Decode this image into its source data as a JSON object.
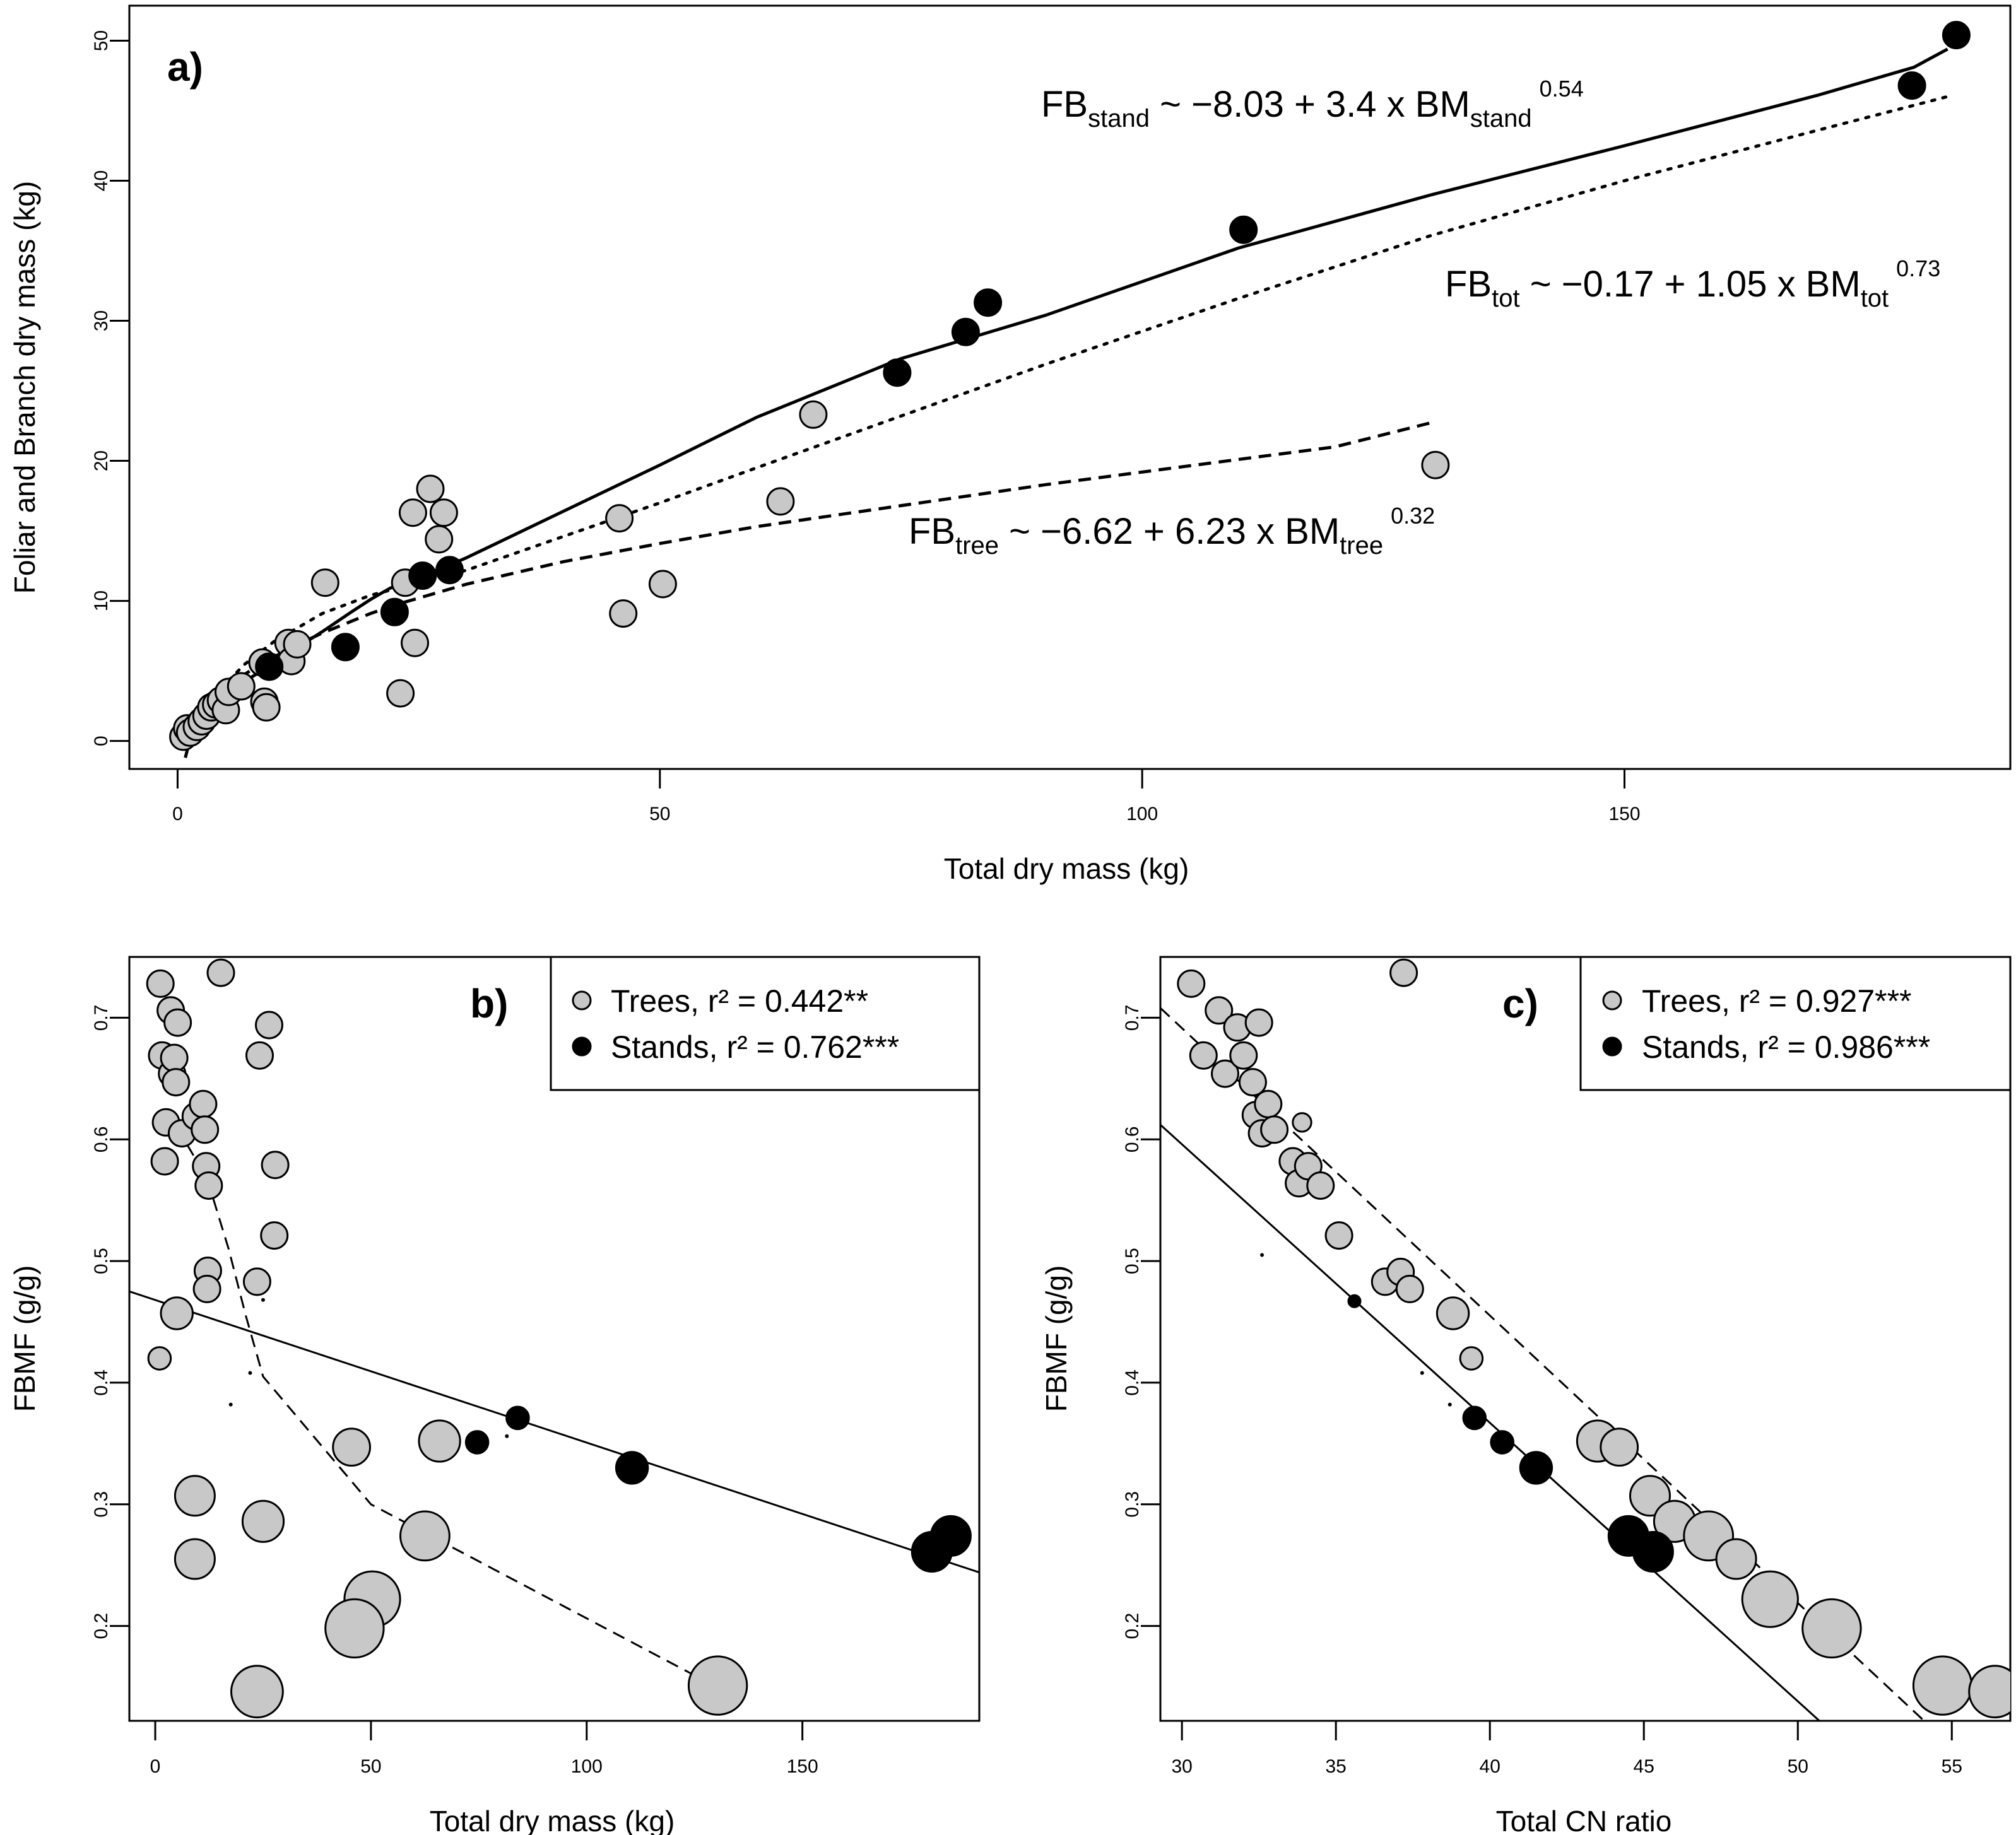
{
  "figure": {
    "colors": {
      "trees": "#c8c8c8",
      "stands": "#000000",
      "stroke": "#000000"
    }
  },
  "chart_data": [
    {
      "panel": "a)",
      "type": "scatter",
      "xlabel": "Total dry mass (kg)",
      "ylabel": "Foliar and Branch dry mass (kg)",
      "xlim": [
        -5,
        190
      ],
      "ylim": [
        -2,
        52.5
      ],
      "xticks": [
        "0",
        "50",
        "100",
        "150"
      ],
      "yticks": [
        "0",
        "10",
        "20",
        "30",
        "40",
        "50"
      ],
      "series": [
        {
          "name": "Trees",
          "color": "#c8c8c8",
          "points": [
            [
              0.6,
              0.3
            ],
            [
              1,
              0.9
            ],
            [
              1.3,
              0.6
            ],
            [
              2,
              1
            ],
            [
              2.5,
              1.4
            ],
            [
              3,
              1.8
            ],
            [
              3.5,
              2.4
            ],
            [
              4,
              2.6
            ],
            [
              4.5,
              2.9
            ],
            [
              5,
              2.2
            ],
            [
              5.3,
              3.5
            ],
            [
              6.6,
              3.9
            ],
            [
              8.8,
              5.6
            ],
            [
              9,
              2.8
            ],
            [
              9.2,
              2.4
            ],
            [
              11.5,
              7
            ],
            [
              11.8,
              5.7
            ],
            [
              12.4,
              6.9
            ],
            [
              15.3,
              11.3
            ],
            [
              23.1,
              3.4
            ],
            [
              23.6,
              11.3
            ],
            [
              24.4,
              16.3
            ],
            [
              24.6,
              7
            ],
            [
              26.2,
              18
            ],
            [
              27.1,
              14.4
            ],
            [
              27.6,
              16.3
            ],
            [
              46.2,
              9.1
            ],
            [
              45.8,
              15.9
            ],
            [
              50.3,
              11.2
            ],
            [
              62.5,
              17.1
            ],
            [
              65.9,
              23.3
            ],
            [
              130.4,
              19.7
            ]
          ]
        },
        {
          "name": "Stands",
          "color": "#000000",
          "points": [
            [
              9.5,
              5.3
            ],
            [
              17.4,
              6.7
            ],
            [
              22.5,
              9.2
            ],
            [
              25.4,
              11.8
            ],
            [
              28.2,
              12.2
            ],
            [
              74.6,
              26.3
            ],
            [
              81.7,
              29.2
            ],
            [
              84,
              31.3
            ],
            [
              110.5,
              36.5
            ],
            [
              179.8,
              46.8
            ],
            [
              184.4,
              50.4
            ]
          ]
        }
      ],
      "fits": [
        {
          "name": "stand",
          "style": "solid",
          "x": [
            0.8,
            1.5,
            3,
            5,
            8,
            10,
            12,
            15,
            18,
            20,
            22,
            25,
            28,
            30,
            40,
            50,
            60,
            75,
            90,
            110,
            130,
            150,
            170,
            180,
            183.5
          ],
          "y": [
            -1.2,
            0.7,
            2.3,
            3.4,
            4.7,
            5.5,
            6.5,
            7.8,
            9.2,
            10.1,
            10.9,
            11.7,
            12.5,
            13.1,
            16.4,
            19.7,
            23.1,
            27.3,
            30.4,
            35.2,
            39,
            42.5,
            46.1,
            48.1,
            49.4
          ]
        },
        {
          "name": "tot",
          "style": "dotted",
          "x": [
            0.8,
            2,
            4,
            7,
            10,
            15,
            20,
            25,
            30,
            40,
            50,
            60,
            75,
            90,
            110,
            130,
            150,
            170,
            184
          ],
          "y": [
            0.6,
            1.5,
            3.4,
            5.5,
            7.1,
            9.1,
            10.4,
            11.3,
            12.2,
            14.6,
            17,
            19.5,
            23.2,
            26.9,
            31.6,
            36.1,
            40,
            43.6,
            46.1
          ]
        },
        {
          "name": "tree",
          "style": "dashed",
          "x": [
            0.7,
            1.5,
            3,
            5,
            7.5,
            10,
            12.5,
            15,
            17.5,
            20,
            22.5,
            25,
            27.5,
            30,
            40,
            50,
            60,
            70,
            80,
            90,
            100,
            110,
            120,
            130.4
          ],
          "y": [
            0.4,
            1.5,
            2.8,
            3.9,
            5,
            6,
            6.9,
            7.7,
            8.4,
            9.1,
            9.7,
            10.2,
            10.7,
            11.2,
            12.8,
            14.1,
            15.3,
            16.3,
            17.3,
            18.3,
            19.2,
            20.1,
            21,
            22.8
          ]
        }
      ],
      "equations": [
        {
          "lhs": "FB",
          "lhs_sub": "stand",
          "rhs": " ~ −8.03 + 3.4 x BM",
          "rhs_sub": "stand",
          "sup": "0.54"
        },
        {
          "lhs": "FB",
          "lhs_sub": "tot",
          "rhs": " ~ −0.17 + 1.05 x BM",
          "rhs_sub": "tot",
          "sup": "0.73"
        },
        {
          "lhs": "FB",
          "lhs_sub": "tree",
          "rhs": " ~ −6.62 + 6.23 x BM",
          "rhs_sub": "tree",
          "sup": "0.32"
        }
      ]
    },
    {
      "panel": "b)",
      "type": "scatter",
      "xlabel": "Total dry mass (kg)",
      "ylabel": "FBMF (g/g)",
      "xlim": [
        -6,
        191
      ],
      "ylim": [
        0.122,
        0.75
      ],
      "xticks": [
        "0",
        "50",
        "100",
        "150"
      ],
      "yticks": [
        "0.2",
        "0.3",
        "0.4",
        "0.5",
        "0.6",
        "0.7"
      ],
      "legend": [
        {
          "marker": "trees",
          "text": "Trees, r² = 0.442**"
        },
        {
          "marker": "stands",
          "text": "Stands, r² = 0.762***"
        }
      ],
      "series": [
        {
          "name": "Trees",
          "color": "#c8c8c8",
          "points": [
            [
              1.2,
              0.728,
              1
            ],
            [
              1.6,
              0.669,
              1
            ],
            [
              2.2,
              0.582,
              1
            ],
            [
              2.5,
              0.614,
              1
            ],
            [
              3.6,
              0.706,
              1
            ],
            [
              3.9,
              0.654,
              1
            ],
            [
              4.4,
              0.667,
              1
            ],
            [
              4.8,
              0.647,
              1
            ],
            [
              5.2,
              0.696,
              1
            ],
            [
              6.2,
              0.605,
              1
            ],
            [
              9.4,
              0.619,
              1
            ],
            [
              11.1,
              0.629,
              1
            ],
            [
              11.5,
              0.608,
              1
            ],
            [
              11.8,
              0.578,
              1
            ],
            [
              12.4,
              0.562,
              1
            ],
            [
              12.2,
              0.492,
              1
            ],
            [
              12,
              0.477,
              1
            ],
            [
              15.2,
              0.737,
              1
            ],
            [
              24.2,
              0.669,
              1
            ],
            [
              26.4,
              0.694,
              1
            ],
            [
              27.8,
              0.579,
              1
            ],
            [
              27.6,
              0.521,
              1
            ],
            [
              23.6,
              0.483,
              1
            ],
            [
              5,
              0.457,
              1.2
            ],
            [
              1,
              0.42,
              0.85
            ],
            [
              9.2,
              0.307,
              1.5
            ],
            [
              9.2,
              0.255,
              1.5
            ],
            [
              25,
              0.286,
              1.55
            ],
            [
              45.5,
              0.347,
              1.4
            ],
            [
              65.9,
              0.352,
              1.55
            ],
            [
              62.5,
              0.274,
              1.85
            ],
            [
              50.3,
              0.222,
              2.1
            ],
            [
              46.2,
              0.198,
              2.2
            ],
            [
              23.6,
              0.146,
              1.95
            ],
            [
              130.4,
              0.151,
              2.2
            ]
          ]
        },
        {
          "name": "Stands",
          "color": "#000000",
          "points": [
            [
              74.6,
              0.351,
              0.85
            ],
            [
              84,
              0.371,
              0.85
            ],
            [
              110.5,
              0.33,
              1.2
            ],
            [
              180,
              0.261,
              1.5
            ],
            [
              184.4,
              0.274,
              1.5
            ]
          ]
        }
      ],
      "fits": [
        {
          "name": "Stands",
          "style": "solid",
          "x": [
            -6,
            191
          ],
          "y": [
            0.475,
            0.244
          ]
        },
        {
          "name": "Trees",
          "style": "dashed",
          "x": [
            5,
            12,
            17,
            21,
            25,
            50,
            130
          ],
          "y": [
            0.61,
            0.568,
            0.51,
            0.455,
            0.405,
            0.3,
            0.15
          ]
        }
      ],
      "tiny_points": [
        [
          17.5,
          0.382
        ],
        [
          22,
          0.408
        ],
        [
          25,
          0.468
        ],
        [
          81.5,
          0.356
        ]
      ]
    },
    {
      "panel": "c)",
      "type": "scatter",
      "xlabel": "Total CN ratio",
      "ylabel": "FBMF (g/g)",
      "xlim": [
        29.3,
        56.9
      ],
      "ylim": [
        0.122,
        0.75
      ],
      "xticks": [
        "30",
        "35",
        "40",
        "45",
        "50",
        "55"
      ],
      "yticks": [
        "0.2",
        "0.3",
        "0.4",
        "0.5",
        "0.6",
        "0.7"
      ],
      "legend": [
        {
          "marker": "trees",
          "text": "Trees, r² = 0.927***"
        },
        {
          "marker": "stands",
          "text": "Stands, r² = 0.986***"
        }
      ],
      "series": [
        {
          "name": "Trees",
          "color": "#c8c8c8",
          "points": [
            [
              30.3,
              0.728,
              1
            ],
            [
              30.7,
              0.669,
              1
            ],
            [
              31.2,
              0.706,
              1
            ],
            [
              31.4,
              0.654,
              1
            ],
            [
              31.8,
              0.692,
              1
            ],
            [
              32,
              0.669,
              1
            ],
            [
              32.3,
              0.647,
              1
            ],
            [
              32.4,
              0.62,
              1
            ],
            [
              32.5,
              0.696,
              1
            ],
            [
              32.6,
              0.605,
              1
            ],
            [
              32.8,
              0.629,
              1
            ],
            [
              33,
              0.608,
              1
            ],
            [
              33.6,
              0.582,
              1
            ],
            [
              33.9,
              0.614,
              0.7
            ],
            [
              33.8,
              0.564,
              1
            ],
            [
              34.1,
              0.578,
              1
            ],
            [
              34.5,
              0.562,
              1
            ],
            [
              35.1,
              0.521,
              1
            ],
            [
              36.6,
              0.483,
              1
            ],
            [
              37.1,
              0.491,
              1
            ],
            [
              37.4,
              0.477,
              1
            ],
            [
              37.2,
              0.737,
              1
            ],
            [
              38.8,
              0.457,
              1.2
            ],
            [
              39.4,
              0.42,
              0.85
            ],
            [
              43.5,
              0.352,
              1.55
            ],
            [
              44.2,
              0.347,
              1.4
            ],
            [
              45.2,
              0.307,
              1.5
            ],
            [
              46,
              0.286,
              1.55
            ],
            [
              47.1,
              0.274,
              1.85
            ],
            [
              48,
              0.255,
              1.5
            ],
            [
              49.1,
              0.222,
              2.1
            ],
            [
              51.1,
              0.198,
              2.2
            ],
            [
              54.7,
              0.151,
              2.2
            ],
            [
              56.4,
              0.146,
              1.95
            ]
          ]
        },
        {
          "name": "Stands",
          "color": "#000000",
          "points": [
            [
              35.6,
              0.467,
              0.45
            ],
            [
              39.5,
              0.371,
              0.85
            ],
            [
              40.4,
              0.351,
              0.85
            ],
            [
              41.5,
              0.33,
              1.2
            ],
            [
              44.5,
              0.274,
              1.5
            ],
            [
              45.3,
              0.261,
              1.5
            ]
          ]
        }
      ],
      "fits": [
        {
          "name": "Stands",
          "style": "solid",
          "x": [
            29.3,
            50.7
          ],
          "y": [
            0.612,
            0.122
          ]
        },
        {
          "name": "Trees",
          "style": "dashed",
          "x": [
            29.3,
            54.1
          ],
          "y": [
            0.708,
            0.122
          ]
        }
      ],
      "tiny_points": [
        [
          32.6,
          0.505
        ],
        [
          37.8,
          0.408
        ],
        [
          38.7,
          0.382
        ],
        [
          40.2,
          0.356
        ]
      ]
    }
  ]
}
